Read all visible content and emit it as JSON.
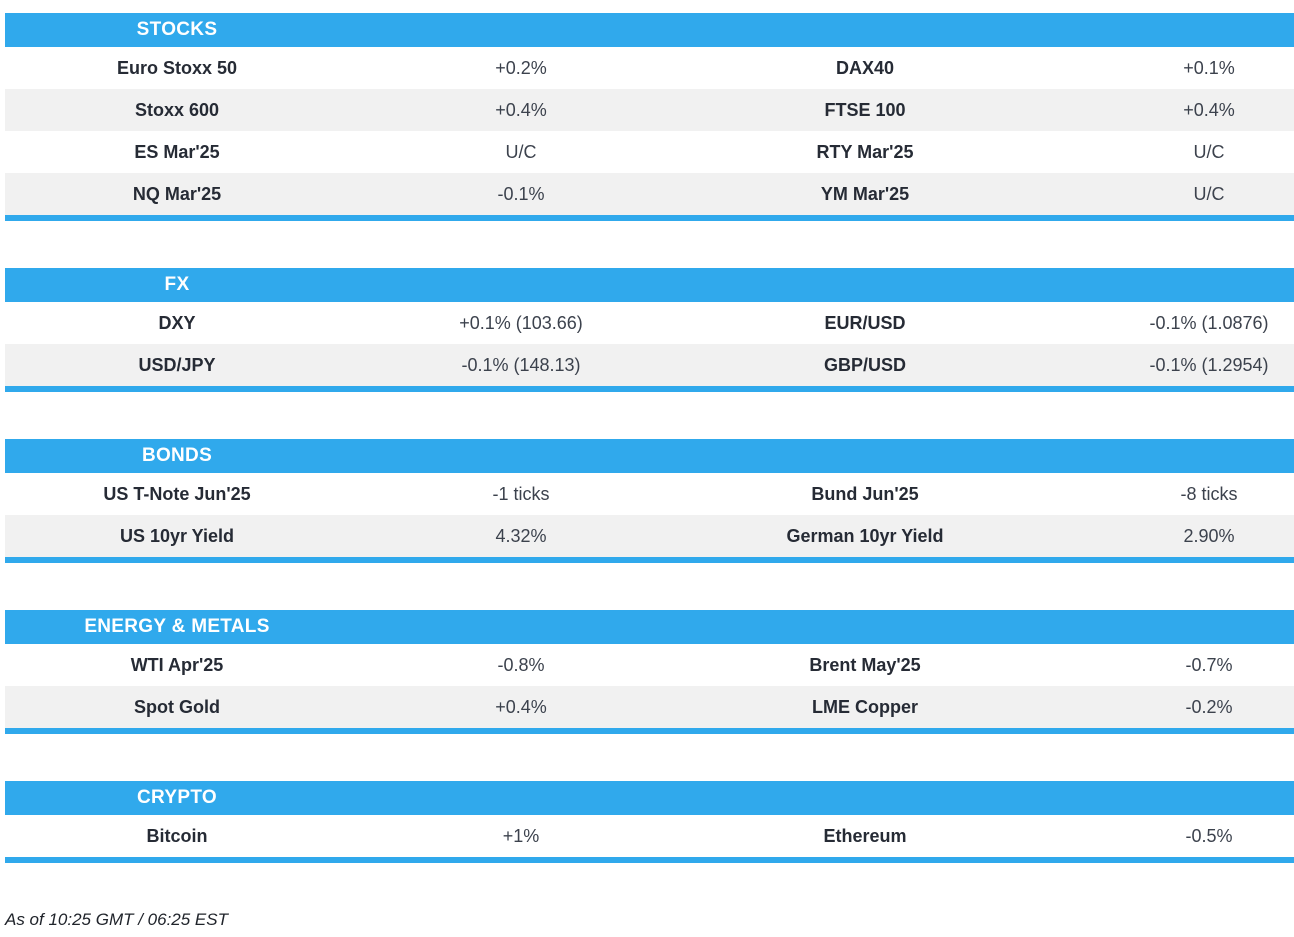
{
  "theme": {
    "accent_color": "#30A9EC",
    "row_alt_color": "#F1F1F1",
    "label_color": "#262B35",
    "value_color": "#3C424D"
  },
  "footer": {
    "text": "As of 10:25 GMT / 06:25 EST"
  },
  "sections": [
    {
      "title": "STOCKS",
      "rows": [
        {
          "l_label": "Euro Stoxx 50",
          "l_value": "+0.2%",
          "r_label": "DAX40",
          "r_value": "+0.1%"
        },
        {
          "l_label": "Stoxx 600",
          "l_value": "+0.4%",
          "r_label": "FTSE 100",
          "r_value": "+0.4%"
        },
        {
          "l_label": "ES Mar'25",
          "l_value": "U/C",
          "r_label": "RTY Mar'25",
          "r_value": "U/C"
        },
        {
          "l_label": "NQ Mar'25",
          "l_value": "-0.1%",
          "r_label": "YM Mar'25",
          "r_value": "U/C"
        }
      ]
    },
    {
      "title": "FX",
      "rows": [
        {
          "l_label": "DXY",
          "l_value": "+0.1% (103.66)",
          "r_label": "EUR/USD",
          "r_value": "-0.1% (1.0876)"
        },
        {
          "l_label": "USD/JPY",
          "l_value": "-0.1% (148.13)",
          "r_label": "GBP/USD",
          "r_value": "-0.1% (1.2954)"
        }
      ]
    },
    {
      "title": "BONDS",
      "rows": [
        {
          "l_label": "US T-Note Jun'25",
          "l_value": "-1 ticks",
          "r_label": "Bund Jun'25",
          "r_value": "-8 ticks"
        },
        {
          "l_label": "US 10yr Yield",
          "l_value": "4.32%",
          "r_label": "German 10yr Yield",
          "r_value": "2.90%"
        }
      ]
    },
    {
      "title": "ENERGY & METALS",
      "rows": [
        {
          "l_label": "WTI Apr'25",
          "l_value": "-0.8%",
          "r_label": "Brent May'25",
          "r_value": "-0.7%"
        },
        {
          "l_label": "Spot Gold",
          "l_value": "+0.4%",
          "r_label": "LME Copper",
          "r_value": "-0.2%"
        }
      ]
    },
    {
      "title": "CRYPTO",
      "rows": [
        {
          "l_label": "Bitcoin",
          "l_value": "+1%",
          "r_label": "Ethereum",
          "r_value": "-0.5%"
        }
      ]
    }
  ]
}
